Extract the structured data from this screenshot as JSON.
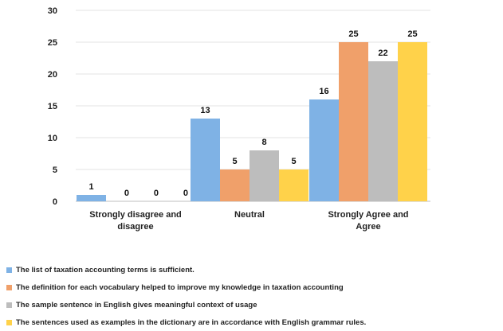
{
  "chart_data": {
    "type": "bar",
    "categories": [
      "Strongly disagree and disagree",
      "Neutral",
      "Strongly Agree and Agree"
    ],
    "category_lines": [
      [
        "Strongly disagree and",
        "disagree"
      ],
      [
        "Neutral"
      ],
      [
        "Strongly Agree and",
        "Agree"
      ]
    ],
    "series": [
      {
        "name": "The list of taxation accounting terms is sufficient.",
        "color": "#7fb2e5",
        "values": [
          1,
          13,
          16
        ]
      },
      {
        "name": "The definition for each vocabulary helped to improve my knowledge in taxation accounting",
        "color": "#f0a06a",
        "values": [
          0,
          5,
          25
        ]
      },
      {
        "name": "The sample sentence in English gives meaningful context of usage",
        "color": "#bdbdbd",
        "values": [
          0,
          8,
          22
        ]
      },
      {
        "name": "The sentences used as examples in the dictionary are in accordance with English grammar rules.",
        "color": "#ffd24a",
        "values": [
          0,
          5,
          25
        ]
      }
    ],
    "y_ticks": [
      0,
      5,
      10,
      15,
      20,
      25,
      30
    ],
    "ylim": [
      0,
      30
    ],
    "grid": true,
    "legend_position": "bottom"
  }
}
